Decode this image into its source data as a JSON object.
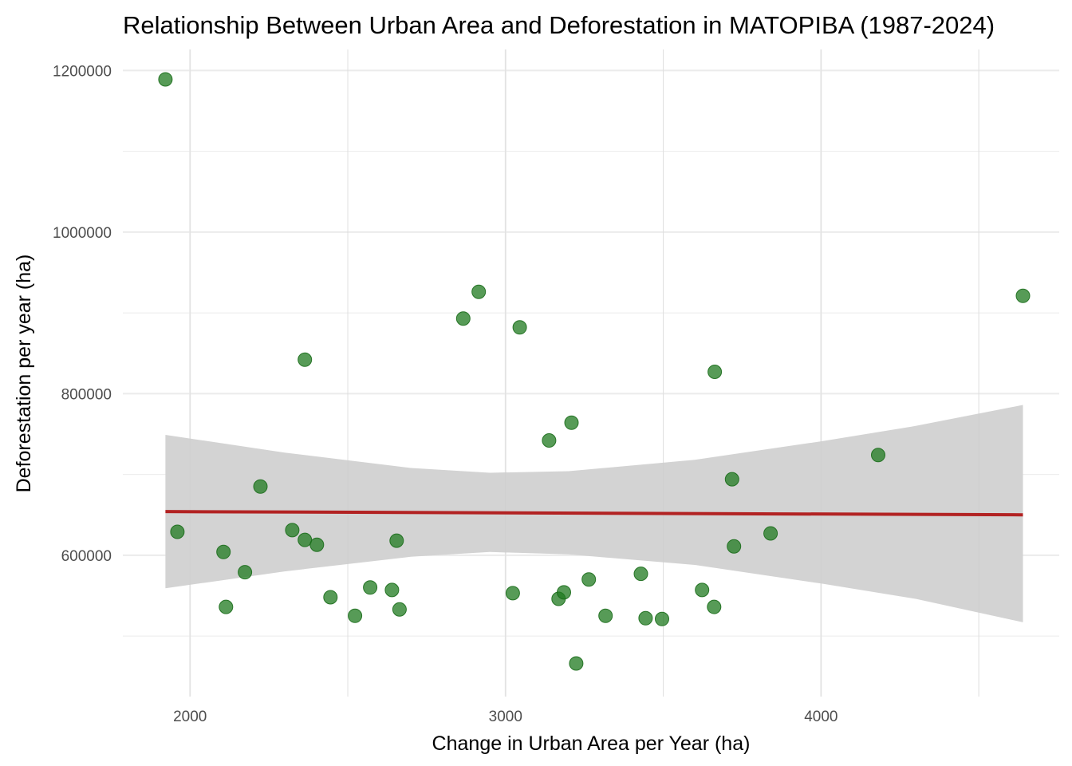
{
  "chart_data": {
    "type": "scatter",
    "title": "Relationship Between Urban Area and Deforestation in MATOPIBA (1987-2024)",
    "xlabel": "Change in Urban Area per Year (ha)",
    "ylabel": "Deforestation per year (ha)",
    "xlim": [
      1787,
      4755
    ],
    "ylim": [
      425000,
      1226000
    ],
    "x_ticks": [
      2000,
      3000,
      4000
    ],
    "x_tick_labels": [
      "2000",
      "3000",
      "4000"
    ],
    "x_minor_ticks": [
      2500,
      3500,
      4500
    ],
    "y_ticks": [
      600000,
      800000,
      1000000,
      1200000
    ],
    "y_tick_labels": [
      "600000",
      "800000",
      "1000000",
      "1200000"
    ],
    "y_minor_ticks": [
      500000,
      700000,
      900000,
      1100000
    ],
    "grid": true,
    "legend": "none",
    "point_color": "#1f7a1f",
    "fit_color": "#b22222",
    "band_color": "#d3d3d3",
    "points": [
      {
        "x": 1922,
        "y": 1189000
      },
      {
        "x": 1960,
        "y": 629000
      },
      {
        "x": 2106,
        "y": 604000
      },
      {
        "x": 2114,
        "y": 536000
      },
      {
        "x": 2174,
        "y": 579000
      },
      {
        "x": 2223,
        "y": 685000
      },
      {
        "x": 2324,
        "y": 631000
      },
      {
        "x": 2364,
        "y": 842000
      },
      {
        "x": 2364,
        "y": 619000
      },
      {
        "x": 2402,
        "y": 613000
      },
      {
        "x": 2445,
        "y": 548000
      },
      {
        "x": 2523,
        "y": 525000
      },
      {
        "x": 2571,
        "y": 560000
      },
      {
        "x": 2640,
        "y": 557000
      },
      {
        "x": 2655,
        "y": 618000
      },
      {
        "x": 2664,
        "y": 533000
      },
      {
        "x": 2866,
        "y": 893000
      },
      {
        "x": 2915,
        "y": 926000
      },
      {
        "x": 3023,
        "y": 553000
      },
      {
        "x": 3045,
        "y": 882000
      },
      {
        "x": 3138,
        "y": 742000
      },
      {
        "x": 3168,
        "y": 546000
      },
      {
        "x": 3185,
        "y": 554000
      },
      {
        "x": 3209,
        "y": 764000
      },
      {
        "x": 3224,
        "y": 466000
      },
      {
        "x": 3264,
        "y": 570000
      },
      {
        "x": 3317,
        "y": 525000
      },
      {
        "x": 3429,
        "y": 577000
      },
      {
        "x": 3444,
        "y": 522000
      },
      {
        "x": 3496,
        "y": 521000
      },
      {
        "x": 3623,
        "y": 557000
      },
      {
        "x": 3661,
        "y": 536000
      },
      {
        "x": 3663,
        "y": 827000
      },
      {
        "x": 3718,
        "y": 694000
      },
      {
        "x": 3724,
        "y": 611000
      },
      {
        "x": 3840,
        "y": 627000
      },
      {
        "x": 4181,
        "y": 724000
      },
      {
        "x": 4640,
        "y": 921000
      }
    ],
    "fit": {
      "method": "lm",
      "x": [
        1922,
        4640
      ],
      "y": [
        654000,
        650000
      ]
    },
    "confidence_band": {
      "x": [
        1922,
        2300,
        2700,
        2950,
        3200,
        3600,
        4000,
        4300,
        4640
      ],
      "upper": [
        749000,
        727000,
        708000,
        702000,
        704000,
        718000,
        741000,
        760000,
        786000
      ],
      "lower": [
        559000,
        580000,
        598000,
        604000,
        601000,
        588000,
        565000,
        546000,
        517000
      ]
    }
  }
}
